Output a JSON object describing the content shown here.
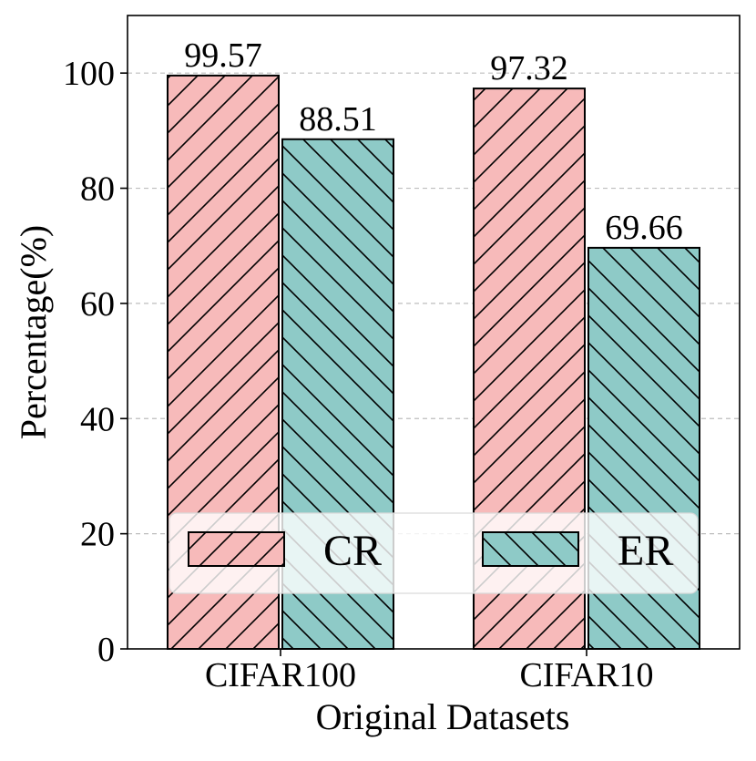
{
  "chart_data": {
    "type": "bar",
    "title": "",
    "xlabel": "Original Datasets",
    "ylabel": "Percentage(%)",
    "categories": [
      "CIFAR100",
      "CIFAR10"
    ],
    "series": [
      {
        "name": "CR",
        "values": [
          99.57,
          97.32
        ],
        "color": "#F7BABA",
        "hatch": "forward-diagonal"
      },
      {
        "name": "ER",
        "values": [
          88.51,
          69.66
        ],
        "color": "#8ECAC7",
        "hatch": "back-diagonal"
      }
    ],
    "data_labels": [
      "99.57",
      "97.32",
      "88.51",
      "69.66"
    ],
    "ylim": [
      0,
      110
    ],
    "yticks": [
      0,
      20,
      40,
      60,
      80,
      100
    ],
    "grid": "horizontal-dashed",
    "legend": "lower-center"
  }
}
